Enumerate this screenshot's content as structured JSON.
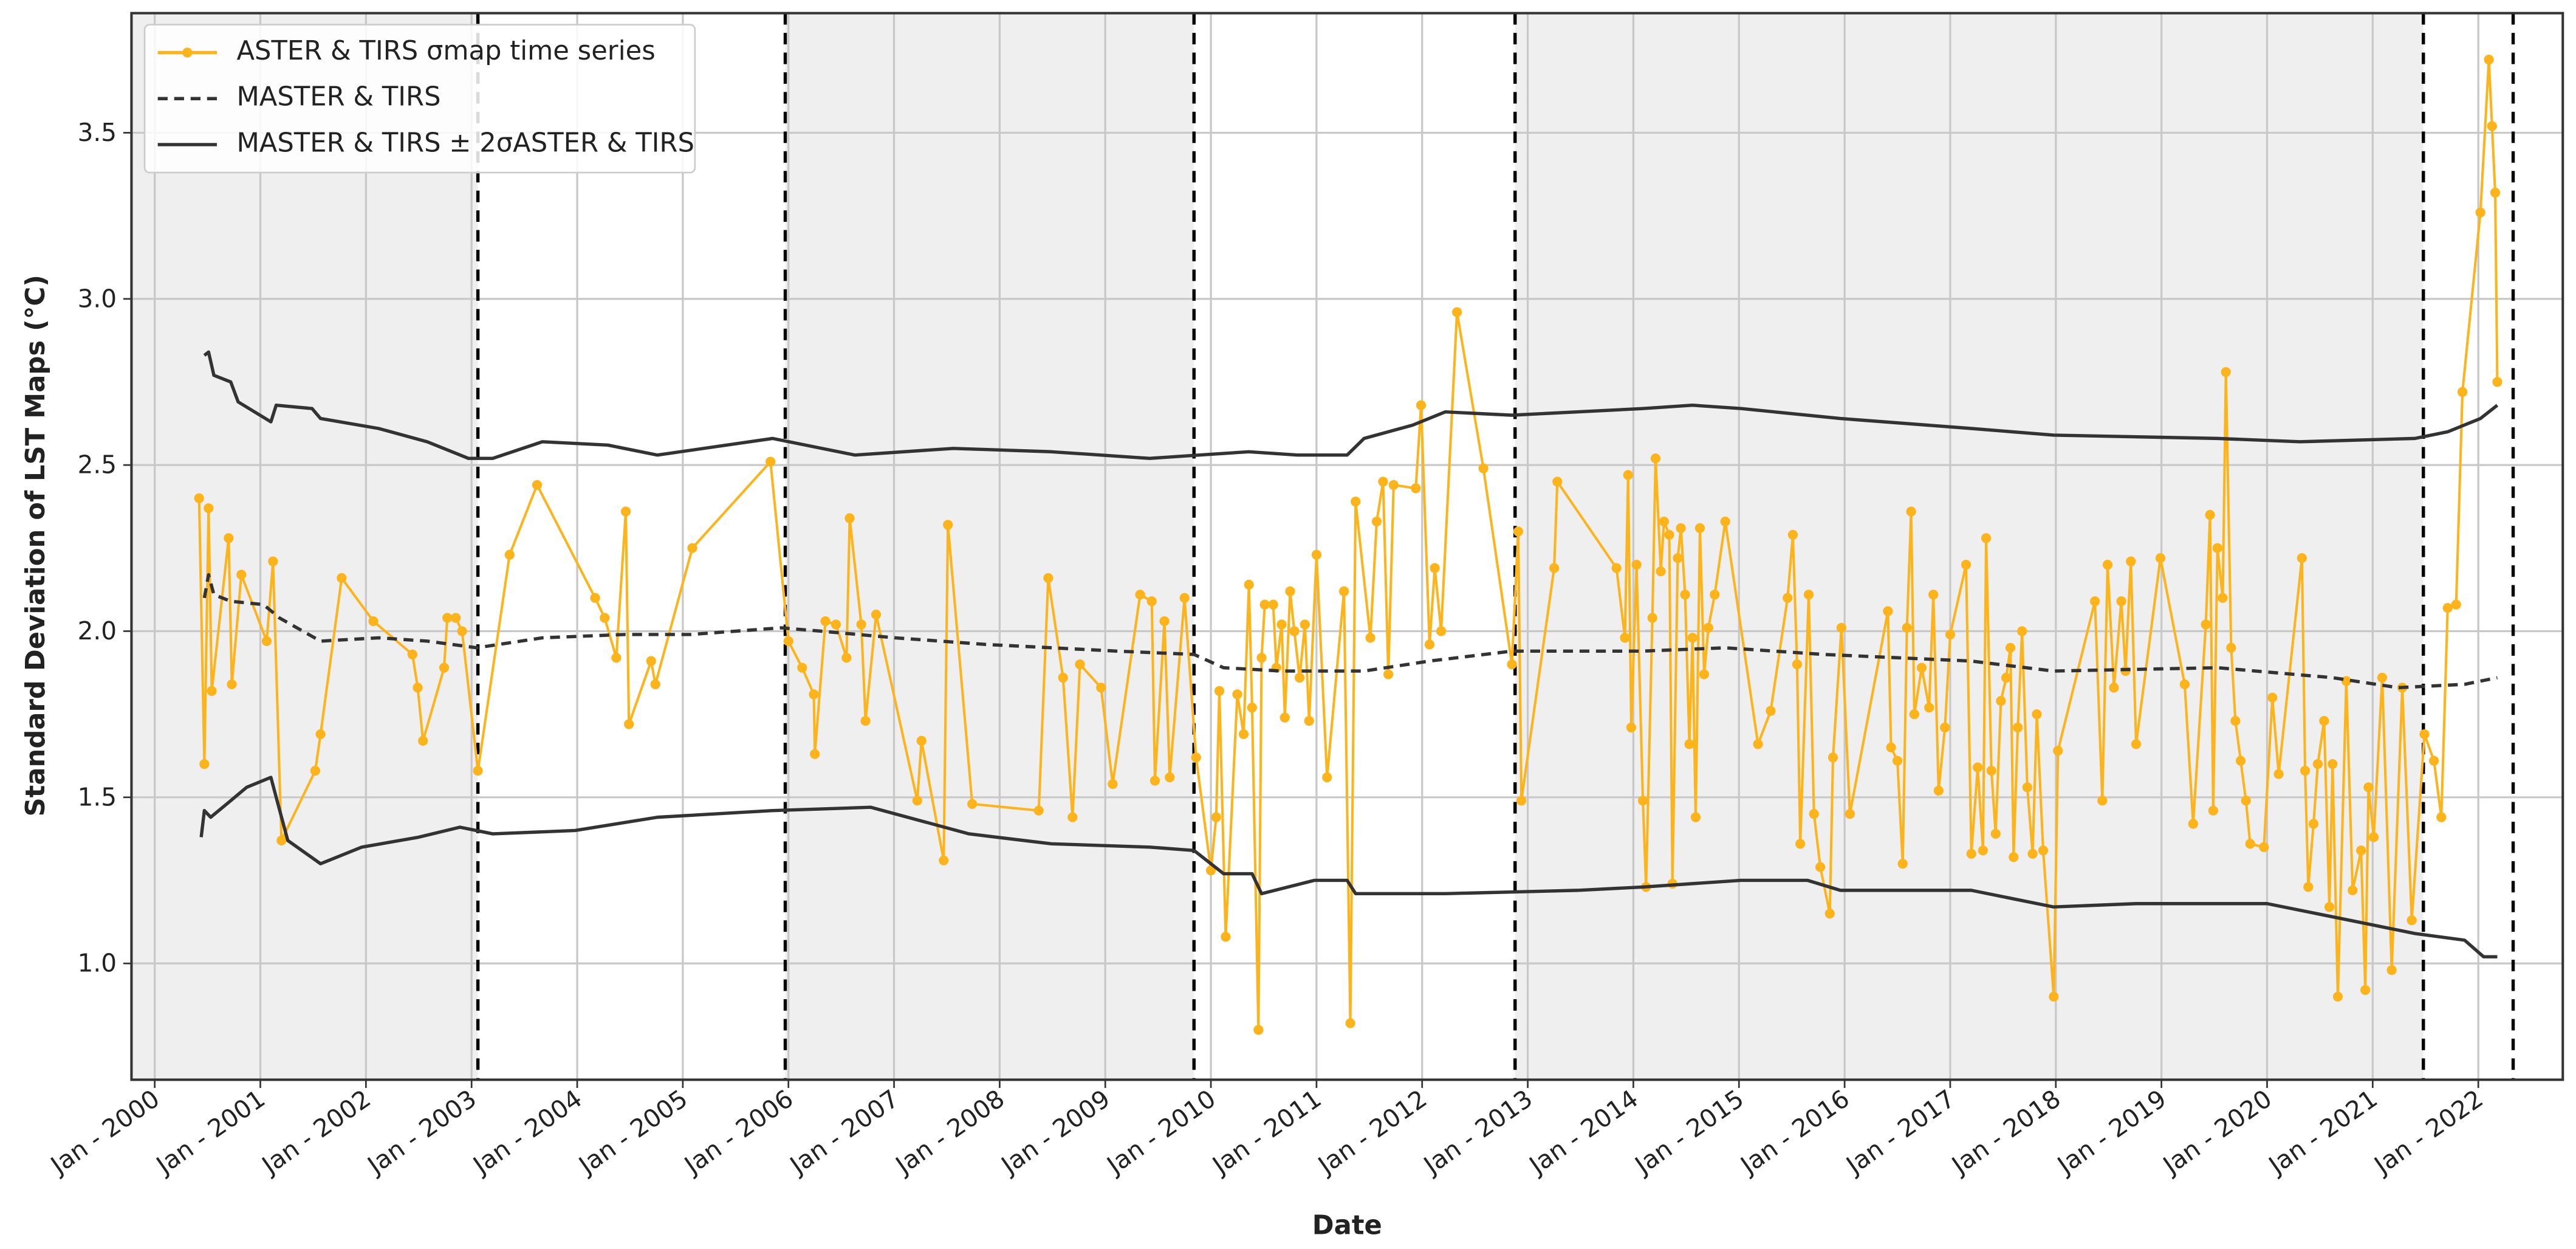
{
  "chart_data": {
    "type": "line",
    "xlabel": "Date",
    "ylabel": "Standard Deviation of LST Maps (°C)",
    "xlim": [
      1999.78,
      2022.8
    ],
    "ylim": [
      0.65,
      3.86
    ],
    "xticks": [
      {
        "value": 2000,
        "label": "Jan - 2000"
      },
      {
        "value": 2001,
        "label": "Jan - 2001"
      },
      {
        "value": 2002,
        "label": "Jan - 2002"
      },
      {
        "value": 2003,
        "label": "Jan - 2003"
      },
      {
        "value": 2004,
        "label": "Jan - 2004"
      },
      {
        "value": 2005,
        "label": "Jan - 2005"
      },
      {
        "value": 2006,
        "label": "Jan - 2006"
      },
      {
        "value": 2007,
        "label": "Jan - 2007"
      },
      {
        "value": 2008,
        "label": "Jan - 2008"
      },
      {
        "value": 2009,
        "label": "Jan - 2009"
      },
      {
        "value": 2010,
        "label": "Jan - 2010"
      },
      {
        "value": 2011,
        "label": "Jan - 2011"
      },
      {
        "value": 2012,
        "label": "Jan - 2012"
      },
      {
        "value": 2013,
        "label": "Jan - 2013"
      },
      {
        "value": 2014,
        "label": "Jan - 2014"
      },
      {
        "value": 2015,
        "label": "Jan - 2015"
      },
      {
        "value": 2016,
        "label": "Jan - 2016"
      },
      {
        "value": 2017,
        "label": "Jan - 2017"
      },
      {
        "value": 2018,
        "label": "Jan - 2018"
      },
      {
        "value": 2019,
        "label": "Jan - 2019"
      },
      {
        "value": 2020,
        "label": "Jan - 2020"
      },
      {
        "value": 2021,
        "label": "Jan - 2021"
      },
      {
        "value": 2022,
        "label": "Jan - 2022"
      }
    ],
    "yticks": [
      {
        "value": 1,
        "label": "1.0"
      },
      1.5,
      {
        "value": 2,
        "label": "2.0"
      },
      2.5,
      {
        "value": 3,
        "label": "3.0"
      },
      3.5
    ],
    "grid": true,
    "legend": "upper left",
    "breakpoints": [
      2003.06,
      2005.97,
      2009.84,
      2012.88,
      2021.48,
      2022.33
    ],
    "shade_color": "#efefef",
    "series": [
      {
        "name": "ASTER & TIRS σmap time series",
        "color": "#fdb31a",
        "style": "solid",
        "markers": true,
        "x": [
          2000.42,
          2000.47,
          2000.51,
          2000.54,
          2000.7,
          2000.73,
          2000.82,
          2001.06,
          2001.12,
          2001.2,
          2001.52,
          2001.57,
          2001.77,
          2002.07,
          2002.44,
          2002.49,
          2002.54,
          2002.74,
          2002.77,
          2002.85,
          2002.91,
          2003.06,
          2003.36,
          2003.62,
          2004.17,
          2004.26,
          2004.37,
          2004.46,
          2004.49,
          2004.7,
          2004.74,
          2005.09,
          2005.83,
          2006.0,
          2006.13,
          2006.24,
          2006.25,
          2006.35,
          2006.45,
          2006.55,
          2006.58,
          2006.69,
          2006.73,
          2006.83,
          2007.22,
          2007.26,
          2007.47,
          2007.51,
          2007.74,
          2008.37,
          2008.46,
          2008.6,
          2008.69,
          2008.76,
          2008.96,
          2009.07,
          2009.33,
          2009.44,
          2009.47,
          2009.56,
          2009.61,
          2009.75,
          2009.86,
          2010.0,
          2010.05,
          2010.08,
          2010.14,
          2010.25,
          2010.31,
          2010.36,
          2010.39,
          2010.45,
          2010.48,
          2010.51,
          2010.59,
          2010.62,
          2010.67,
          2010.7,
          2010.75,
          2010.79,
          2010.84,
          2010.89,
          2010.93,
          2011.0,
          2011.1,
          2011.26,
          2011.32,
          2011.37,
          2011.51,
          2011.57,
          2011.63,
          2011.68,
          2011.73,
          2011.94,
          2011.99,
          2012.07,
          2012.12,
          2012.18,
          2012.33,
          2012.58,
          2012.85,
          2012.91,
          2012.94,
          2013.25,
          2013.28,
          2013.84,
          2013.92,
          2013.95,
          2013.98,
          2014.03,
          2014.09,
          2014.12,
          2014.18,
          2014.21,
          2014.26,
          2014.29,
          2014.34,
          2014.37,
          2014.42,
          2014.45,
          2014.49,
          2014.53,
          2014.56,
          2014.59,
          2014.63,
          2014.67,
          2014.71,
          2014.77,
          2014.87,
          2015.18,
          2015.3,
          2015.46,
          2015.51,
          2015.55,
          2015.58,
          2015.66,
          2015.71,
          2015.77,
          2015.86,
          2015.89,
          2015.97,
          2016.05,
          2016.41,
          2016.44,
          2016.5,
          2016.55,
          2016.59,
          2016.63,
          2016.66,
          2016.73,
          2016.8,
          2016.84,
          2016.89,
          2016.95,
          2017.0,
          2017.15,
          2017.2,
          2017.26,
          2017.31,
          2017.34,
          2017.39,
          2017.43,
          2017.48,
          2017.53,
          2017.57,
          2017.6,
          2017.64,
          2017.68,
          2017.73,
          2017.78,
          2017.82,
          2017.88,
          2017.98,
          2018.02,
          2018.37,
          2018.44,
          2018.49,
          2018.55,
          2018.62,
          2018.66,
          2018.71,
          2018.76,
          2018.99,
          2019.22,
          2019.3,
          2019.42,
          2019.46,
          2019.49,
          2019.53,
          2019.58,
          2019.61,
          2019.66,
          2019.7,
          2019.75,
          2019.8,
          2019.84,
          2019.97,
          2020.05,
          2020.11,
          2020.33,
          2020.36,
          2020.39,
          2020.44,
          2020.48,
          2020.54,
          2020.59,
          2020.62,
          2020.67,
          2020.75,
          2020.81,
          2020.89,
          2020.93,
          2020.96,
          2021.01,
          2021.09,
          2021.18,
          2021.28,
          2021.37,
          2021.49,
          2021.58,
          2021.65,
          2021.71,
          2021.79,
          2021.85,
          2022.02,
          2022.1,
          2022.13,
          2022.16,
          2022.18
        ],
        "values": [
          2.4,
          1.6,
          2.37,
          1.82,
          2.28,
          1.84,
          2.17,
          1.97,
          2.21,
          1.37,
          1.58,
          1.69,
          2.16,
          2.03,
          1.93,
          1.83,
          1.67,
          1.89,
          2.04,
          2.04,
          2.0,
          1.58,
          2.23,
          2.44,
          2.1,
          2.04,
          1.92,
          2.36,
          1.72,
          1.91,
          1.84,
          2.25,
          2.51,
          1.97,
          1.89,
          1.81,
          1.63,
          2.03,
          2.02,
          1.92,
          2.34,
          2.02,
          1.73,
          2.05,
          1.49,
          1.67,
          1.31,
          2.32,
          1.48,
          1.46,
          2.16,
          1.86,
          1.44,
          1.9,
          1.83,
          1.54,
          2.11,
          2.09,
          1.55,
          2.03,
          1.56,
          2.1,
          1.62,
          1.28,
          1.44,
          1.82,
          1.08,
          1.81,
          1.69,
          2.14,
          1.77,
          0.8,
          1.92,
          2.08,
          2.08,
          1.89,
          2.02,
          1.74,
          2.12,
          2.0,
          1.86,
          2.02,
          1.73,
          2.23,
          1.56,
          2.12,
          0.82,
          2.39,
          1.98,
          2.33,
          2.45,
          1.87,
          2.44,
          2.43,
          2.68,
          1.96,
          2.19,
          2.0,
          2.96,
          2.49,
          1.9,
          2.3,
          1.49,
          2.19,
          2.45,
          2.19,
          1.98,
          2.47,
          1.71,
          2.2,
          1.49,
          1.23,
          2.04,
          2.52,
          2.18,
          2.33,
          2.29,
          1.24,
          2.22,
          2.31,
          2.11,
          1.66,
          1.98,
          1.44,
          2.31,
          1.87,
          2.01,
          2.11,
          2.33,
          1.66,
          1.76,
          2.1,
          2.29,
          1.9,
          1.36,
          2.11,
          1.45,
          1.29,
          1.15,
          1.62,
          2.01,
          1.45,
          2.06,
          1.65,
          1.61,
          1.3,
          2.01,
          2.36,
          1.75,
          1.89,
          1.77,
          2.11,
          1.52,
          1.71,
          1.99,
          2.2,
          1.33,
          1.59,
          1.34,
          2.28,
          1.58,
          1.39,
          1.79,
          1.86,
          1.95,
          1.32,
          1.71,
          2.0,
          1.53,
          1.33,
          1.75,
          1.34,
          0.9,
          1.64,
          2.09,
          1.49,
          2.2,
          1.83,
          2.09,
          1.88,
          2.21,
          1.66,
          2.22,
          1.84,
          1.42,
          2.02,
          2.35,
          1.46,
          2.25,
          2.1,
          2.78,
          1.95,
          1.73,
          1.61,
          1.49,
          1.36,
          1.35,
          1.8,
          1.57,
          2.22,
          1.58,
          1.23,
          1.42,
          1.6,
          1.73,
          1.17,
          1.6,
          0.9,
          1.85,
          1.22,
          1.34,
          0.92,
          1.53,
          1.38,
          1.86,
          0.98,
          1.83,
          1.13,
          1.69,
          1.61,
          1.44,
          2.07,
          2.08,
          2.72,
          3.26,
          3.72,
          3.52,
          3.32,
          2.75
        ]
      },
      {
        "name": "MASTER & TIRS",
        "color": "#333333",
        "style": "dashed",
        "markers": false,
        "x": [
          2000.47,
          2000.51,
          2000.56,
          2000.72,
          2001.03,
          2001.18,
          2001.57,
          2002.12,
          2002.58,
          2003.05,
          2003.67,
          2004.45,
          2005.07,
          2005.93,
          2006.31,
          2007.01,
          2007.87,
          2009.11,
          2009.84,
          2010.12,
          2010.67,
          2011.45,
          2012.07,
          2012.85,
          2014.09,
          2014.87,
          2015.8,
          2017.2,
          2017.98,
          2019.53,
          2020.62,
          2021.24,
          2021.87,
          2022.18
        ],
        "values": [
          2.1,
          2.17,
          2.11,
          2.09,
          2.08,
          2.04,
          1.97,
          1.98,
          1.97,
          1.95,
          1.98,
          1.99,
          1.99,
          2.01,
          2.0,
          1.98,
          1.96,
          1.94,
          1.93,
          1.89,
          1.88,
          1.88,
          1.91,
          1.94,
          1.94,
          1.95,
          1.93,
          1.91,
          1.88,
          1.89,
          1.86,
          1.83,
          1.84,
          1.86
        ]
      },
      {
        "name": "MASTER & TIRS ± 2σASTER & TIRS",
        "color": "#333333",
        "style": "solid",
        "markers": false,
        "x": [
          2000.47,
          2000.51,
          2000.56,
          2000.72,
          2000.79,
          2001.1,
          2001.15,
          2001.49,
          2001.57,
          2002.12,
          2002.58,
          2002.97,
          2003.2,
          2003.67,
          2004.29,
          2004.76,
          2005.85,
          2006.63,
          2007.56,
          2008.49,
          2009.42,
          2009.89,
          2010.36,
          2010.82,
          2011.29,
          2011.45,
          2011.91,
          2012.22,
          2012.85,
          2014.09,
          2014.56,
          2015.02,
          2015.96,
          2017.2,
          2017.98,
          2019.53,
          2020.31,
          2021.4,
          2021.71,
          2022.02,
          2022.18
        ],
        "values": [
          2.83,
          2.84,
          2.77,
          2.75,
          2.69,
          2.63,
          2.68,
          2.67,
          2.64,
          2.61,
          2.57,
          2.52,
          2.52,
          2.57,
          2.56,
          2.53,
          2.58,
          2.53,
          2.55,
          2.54,
          2.52,
          2.53,
          2.54,
          2.53,
          2.53,
          2.58,
          2.62,
          2.66,
          2.65,
          2.67,
          2.68,
          2.67,
          2.64,
          2.61,
          2.59,
          2.58,
          2.57,
          2.58,
          2.6,
          2.64,
          2.68
        ],
        "x_lower": [
          2000.44,
          2000.47,
          2000.53,
          2000.72,
          2000.87,
          2001.1,
          2001.15,
          2001.26,
          2001.57,
          2001.96,
          2002.5,
          2002.89,
          2003.2,
          2003.98,
          2004.76,
          2005.85,
          2006.78,
          2007.71,
          2008.49,
          2009.42,
          2009.84,
          2010.12,
          2010.39,
          2010.48,
          2010.98,
          2011.29,
          2011.37,
          2012.22,
          2013.47,
          2014.09,
          2015.02,
          2015.65,
          2015.96,
          2017.2,
          2017.98,
          2018.76,
          2020.0,
          2020.78,
          2021.4,
          2021.87,
          2022.05,
          2022.18
        ],
        "lower": [
          1.38,
          1.46,
          1.44,
          1.49,
          1.53,
          1.56,
          1.5,
          1.37,
          1.3,
          1.35,
          1.38,
          1.41,
          1.39,
          1.4,
          1.44,
          1.46,
          1.47,
          1.39,
          1.36,
          1.35,
          1.34,
          1.27,
          1.27,
          1.21,
          1.25,
          1.25,
          1.21,
          1.21,
          1.22,
          1.23,
          1.25,
          1.25,
          1.22,
          1.22,
          1.17,
          1.18,
          1.18,
          1.13,
          1.09,
          1.07,
          1.02,
          1.02
        ]
      }
    ]
  }
}
